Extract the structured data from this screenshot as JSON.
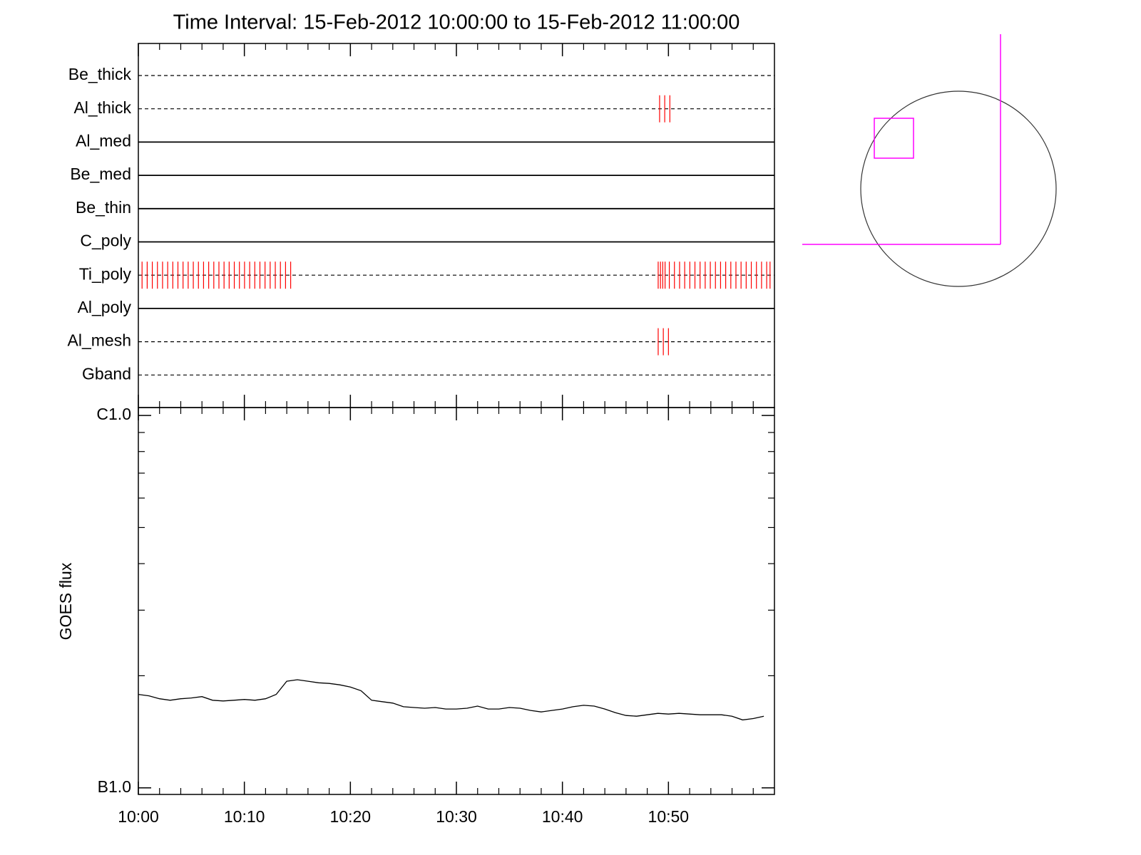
{
  "chart_data": [
    {
      "type": "timeline",
      "title": "Time Interval: 15-Feb-2012 10:00:00 to 15-Feb-2012 11:00:00",
      "xlim": [
        "10:00",
        "11:00"
      ],
      "event_color": "#ff0000",
      "rows": [
        {
          "name": "Be_thick",
          "style": "dashed",
          "times": []
        },
        {
          "name": "Al_thick",
          "style": "dashed",
          "times": [
            "10:49:10",
            "10:49:39",
            "10:50:08"
          ]
        },
        {
          "name": "Al_med",
          "style": "solid",
          "times": []
        },
        {
          "name": "Be_med",
          "style": "solid",
          "times": []
        },
        {
          "name": "Be_thin",
          "style": "solid",
          "times": []
        },
        {
          "name": "C_poly",
          "style": "solid",
          "times": []
        },
        {
          "name": "Ti_poly",
          "style": "dashed",
          "times": [
            "10:00:21",
            "10:00:50",
            "10:01:19",
            "10:01:48",
            "10:02:17",
            "10:02:46",
            "10:03:15",
            "10:03:44",
            "10:04:13",
            "10:04:42",
            "10:05:11",
            "10:05:40",
            "10:06:09",
            "10:06:38",
            "10:07:07",
            "10:07:36",
            "10:08:05",
            "10:08:34",
            "10:09:03",
            "10:09:32",
            "10:10:01",
            "10:10:30",
            "10:10:59",
            "10:11:28",
            "10:11:57",
            "10:12:26",
            "10:12:55",
            "10:13:24",
            "10:13:53",
            "10:14:22",
            "10:49:02",
            "10:49:15",
            "10:49:28",
            "10:49:41",
            "10:50:05",
            "10:50:34",
            "10:51:03",
            "10:51:32",
            "10:52:01",
            "10:52:30",
            "10:52:59",
            "10:53:28",
            "10:53:57",
            "10:54:26",
            "10:54:55",
            "10:55:24",
            "10:55:53",
            "10:56:22",
            "10:56:51",
            "10:57:20",
            "10:57:49",
            "10:58:18",
            "10:58:47",
            "10:59:16",
            "10:59:35"
          ]
        },
        {
          "name": "Al_poly",
          "style": "solid",
          "times": []
        },
        {
          "name": "Al_mesh",
          "style": "dashed",
          "times": [
            "10:49:02",
            "10:49:31",
            "10:50:00"
          ]
        },
        {
          "name": "Gband",
          "style": "dashed",
          "times": []
        }
      ]
    },
    {
      "type": "line",
      "ylabel": "GOES flux",
      "log_y": true,
      "color": "#000000",
      "xlim": [
        "10:00",
        "11:00"
      ],
      "xticks": [
        "10:00",
        "10:10",
        "10:20",
        "10:30",
        "10:40",
        "10:50"
      ],
      "ylim": [
        9.6e-08,
        1.05e-06
      ],
      "yticks": [
        {
          "value": 1e-07,
          "label": "B1.0"
        },
        {
          "value": 1e-06,
          "label": "C1.0"
        }
      ],
      "yminor": [
        2e-07,
        3e-07,
        4e-07,
        5e-07,
        6e-07,
        7e-07,
        8e-07,
        9e-07
      ],
      "x": [
        "10:00",
        "10:01",
        "10:02",
        "10:03",
        "10:04",
        "10:05",
        "10:06",
        "10:07",
        "10:08",
        "10:09",
        "10:10",
        "10:11",
        "10:12",
        "10:13",
        "10:14",
        "10:15",
        "10:16",
        "10:17",
        "10:18",
        "10:19",
        "10:20",
        "10:21",
        "10:22",
        "10:23",
        "10:24",
        "10:25",
        "10:26",
        "10:27",
        "10:28",
        "10:29",
        "10:30",
        "10:31",
        "10:32",
        "10:33",
        "10:34",
        "10:35",
        "10:36",
        "10:37",
        "10:38",
        "10:39",
        "10:40",
        "10:41",
        "10:42",
        "10:43",
        "10:44",
        "10:45",
        "10:46",
        "10:47",
        "10:48",
        "10:49",
        "10:50",
        "10:51",
        "10:52",
        "10:53",
        "10:54",
        "10:55",
        "10:56",
        "10:57",
        "10:58",
        "10:59"
      ],
      "values": [
        1.782e-07,
        1.766e-07,
        1.735e-07,
        1.719e-07,
        1.735e-07,
        1.743e-07,
        1.758e-07,
        1.719e-07,
        1.711e-07,
        1.719e-07,
        1.727e-07,
        1.719e-07,
        1.735e-07,
        1.782e-07,
        1.933e-07,
        1.951e-07,
        1.933e-07,
        1.915e-07,
        1.907e-07,
        1.89e-07,
        1.865e-07,
        1.823e-07,
        1.719e-07,
        1.704e-07,
        1.689e-07,
        1.651e-07,
        1.643e-07,
        1.636e-07,
        1.643e-07,
        1.628e-07,
        1.628e-07,
        1.636e-07,
        1.658e-07,
        1.628e-07,
        1.628e-07,
        1.643e-07,
        1.636e-07,
        1.614e-07,
        1.599e-07,
        1.614e-07,
        1.628e-07,
        1.651e-07,
        1.666e-07,
        1.658e-07,
        1.628e-07,
        1.592e-07,
        1.564e-07,
        1.557e-07,
        1.571e-07,
        1.585e-07,
        1.578e-07,
        1.585e-07,
        1.578e-07,
        1.571e-07,
        1.571e-07,
        1.571e-07,
        1.557e-07,
        1.522e-07,
        1.535e-07,
        1.557e-07
      ]
    }
  ]
}
